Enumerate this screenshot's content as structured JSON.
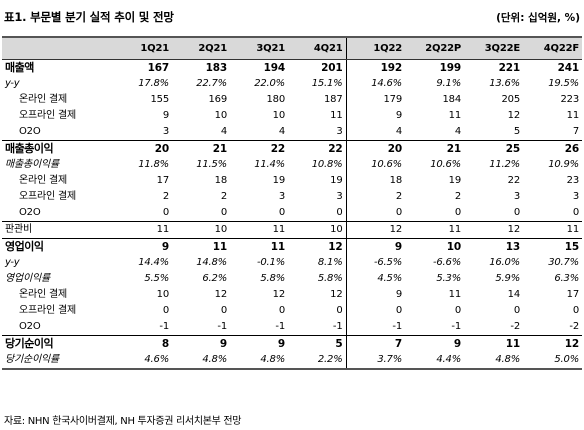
{
  "title": "표1. 부문별 분기 실적 추이 및 전망",
  "unit": "(단위: 십억원, %)",
  "columns": [
    "1Q21",
    "2Q21",
    "3Q21",
    "4Q21",
    "1Q22",
    "2Q22P",
    "3Q22E",
    "4Q22F"
  ],
  "rows": [
    {
      "label": "매출액",
      "style": "main",
      "group_start": true,
      "values": [
        "167",
        "183",
        "194",
        "201",
        "192",
        "199",
        "221",
        "241"
      ]
    },
    {
      "label": "y-y",
      "style": "italic",
      "values": [
        "17.8%",
        "22.7%",
        "22.0%",
        "15.1%",
        "14.6%",
        "9.1%",
        "13.6%",
        "19.5%"
      ]
    },
    {
      "label": "온라인 결제",
      "style": "sub",
      "values": [
        "155",
        "169",
        "180",
        "187",
        "179",
        "184",
        "205",
        "223"
      ]
    },
    {
      "label": "오프라인 결제",
      "style": "sub",
      "values": [
        "9",
        "10",
        "10",
        "11",
        "9",
        "11",
        "12",
        "11"
      ]
    },
    {
      "label": "O2O",
      "style": "sub",
      "values": [
        "3",
        "4",
        "4",
        "3",
        "4",
        "4",
        "5",
        "7"
      ]
    },
    {
      "label": "매출총이익",
      "style": "main",
      "group_start": true,
      "values": [
        "20",
        "21",
        "22",
        "22",
        "20",
        "21",
        "25",
        "26"
      ]
    },
    {
      "label": "매출총이익률",
      "style": "italic",
      "values": [
        "11.8%",
        "11.5%",
        "11.4%",
        "10.8%",
        "10.6%",
        "10.6%",
        "11.2%",
        "10.9%"
      ]
    },
    {
      "label": "온라인 결제",
      "style": "sub",
      "values": [
        "17",
        "18",
        "19",
        "19",
        "18",
        "19",
        "22",
        "23"
      ]
    },
    {
      "label": "오프라인 결제",
      "style": "sub",
      "values": [
        "2",
        "2",
        "3",
        "3",
        "2",
        "2",
        "3",
        "3"
      ]
    },
    {
      "label": "O2O",
      "style": "sub",
      "values": [
        "0",
        "0",
        "0",
        "0",
        "0",
        "0",
        "0",
        "0"
      ]
    },
    {
      "label": "판관비",
      "style": "plain",
      "group_start": true,
      "values": [
        "11",
        "10",
        "11",
        "10",
        "12",
        "11",
        "12",
        "11"
      ]
    },
    {
      "label": "영업이익",
      "style": "main",
      "group_start": true,
      "values": [
        "9",
        "11",
        "11",
        "12",
        "9",
        "10",
        "13",
        "15"
      ]
    },
    {
      "label": "y-y",
      "style": "italic",
      "values": [
        "14.4%",
        "14.8%",
        "-0.1%",
        "8.1%",
        "-6.5%",
        "-6.6%",
        "16.0%",
        "30.7%"
      ]
    },
    {
      "label": "영업이익률",
      "style": "italic",
      "values": [
        "5.5%",
        "6.2%",
        "5.8%",
        "5.8%",
        "4.5%",
        "5.3%",
        "5.9%",
        "6.3%"
      ]
    },
    {
      "label": "온라인 결제",
      "style": "sub",
      "values": [
        "10",
        "12",
        "12",
        "12",
        "9",
        "11",
        "14",
        "17"
      ]
    },
    {
      "label": "오프라인 결제",
      "style": "sub",
      "values": [
        "0",
        "0",
        "0",
        "0",
        "0",
        "0",
        "0",
        "0"
      ]
    },
    {
      "label": "O2O",
      "style": "sub",
      "values": [
        "-1",
        "-1",
        "-1",
        "-1",
        "-1",
        "-1",
        "-2",
        "-2"
      ]
    },
    {
      "label": "당기순이익",
      "style": "main",
      "group_start": true,
      "values": [
        "8",
        "9",
        "9",
        "5",
        "7",
        "9",
        "11",
        "12"
      ]
    },
    {
      "label": "당기순이익률",
      "style": "italic",
      "last": true,
      "values": [
        "4.6%",
        "4.8%",
        "4.8%",
        "2.2%",
        "3.7%",
        "4.4%",
        "4.8%",
        "5.0%"
      ]
    }
  ],
  "source": "자료: NHN 한국사이버결제, NH 투자증권 리서치본부 전망"
}
